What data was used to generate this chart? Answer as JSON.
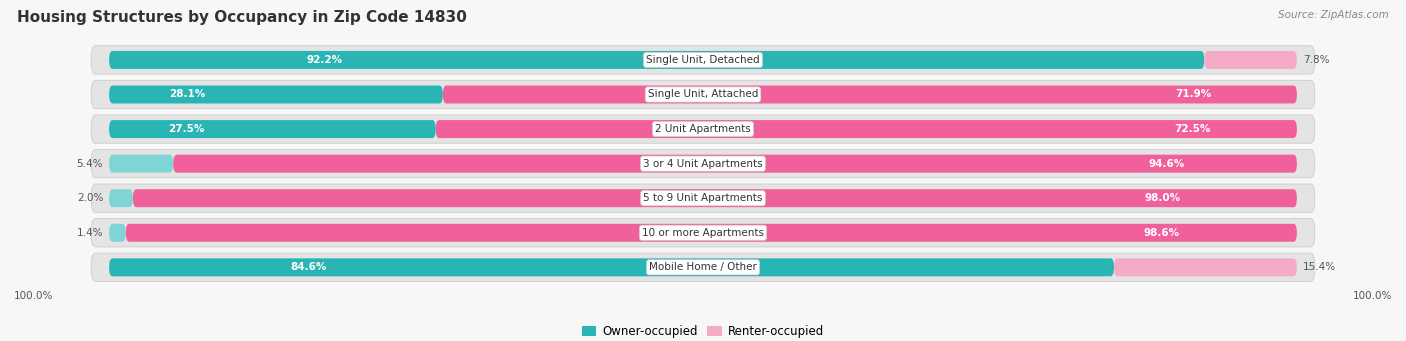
{
  "title": "Housing Structures by Occupancy in Zip Code 14830",
  "source": "Source: ZipAtlas.com",
  "categories": [
    "Single Unit, Detached",
    "Single Unit, Attached",
    "2 Unit Apartments",
    "3 or 4 Unit Apartments",
    "5 to 9 Unit Apartments",
    "10 or more Apartments",
    "Mobile Home / Other"
  ],
  "owner_pct": [
    92.2,
    28.1,
    27.5,
    5.4,
    2.0,
    1.4,
    84.6
  ],
  "renter_pct": [
    7.8,
    71.9,
    72.5,
    94.6,
    98.0,
    98.6,
    15.4
  ],
  "owner_color": "#2ab5b5",
  "owner_color_light": "#7fd5d5",
  "renter_color": "#f0609a",
  "renter_color_light": "#f5aac8",
  "row_bg_color": "#e4e4e4",
  "row_border_color": "#cccccc",
  "fig_bg_color": "#f7f7f7",
  "figsize": [
    14.06,
    3.41
  ],
  "dpi": 100
}
